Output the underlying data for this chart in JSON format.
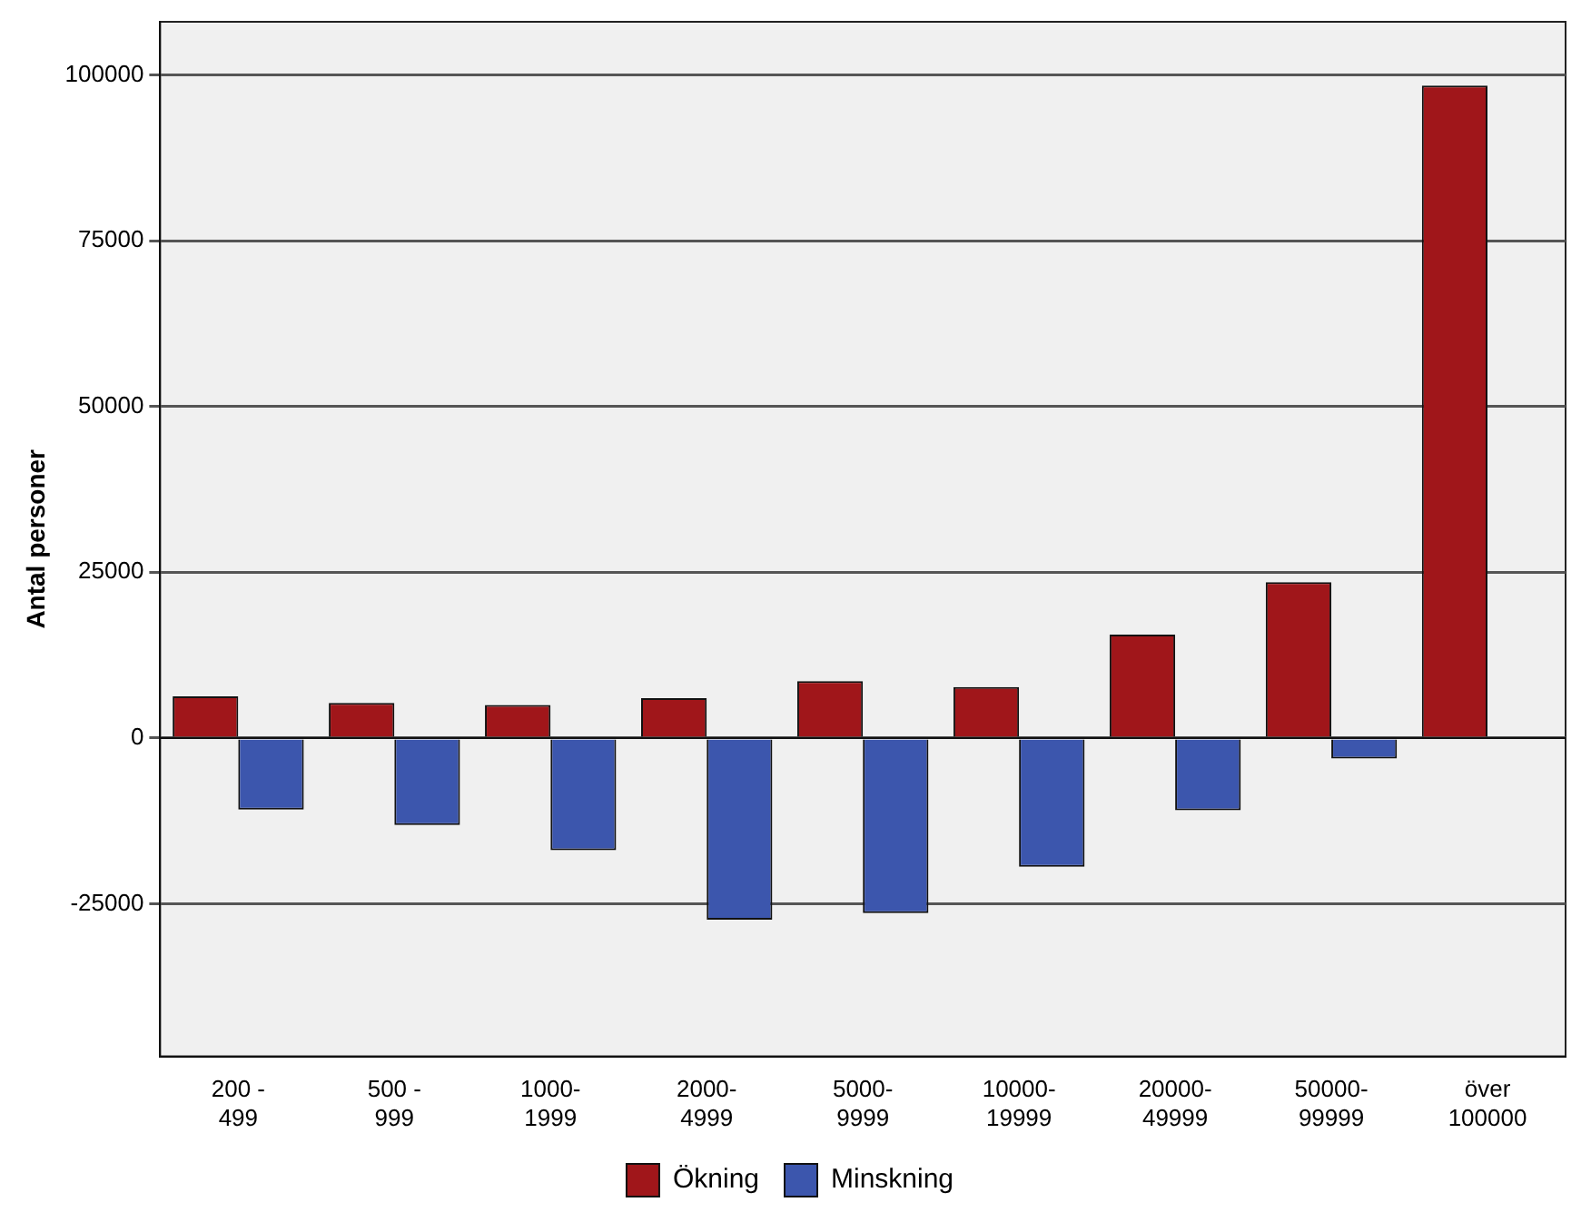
{
  "chart_data": {
    "type": "bar",
    "ylabel": "Antal personer",
    "categories": [
      "200 - 499",
      "500 - 999",
      "1000-1999",
      "2000-4999",
      "5000-9999",
      "10000-19999",
      "20000-49999",
      "50000-99999",
      "över 100000"
    ],
    "series": [
      {
        "name": "Ökning",
        "color": "#a0161a",
        "values": [
          6300,
          5300,
          5000,
          6000,
          8600,
          7700,
          15600,
          23500,
          98400
        ]
      },
      {
        "name": "Minskning",
        "color": "#3c56ad",
        "values": [
          -10800,
          -13100,
          -16900,
          -27400,
          -26400,
          -19400,
          -10900,
          -3100,
          null
        ]
      }
    ],
    "ylim": [
      -48000,
      108000
    ],
    "yticks": [
      -25000,
      0,
      25000,
      50000,
      75000,
      100000
    ],
    "grid": "y",
    "legend": "bottom"
  }
}
